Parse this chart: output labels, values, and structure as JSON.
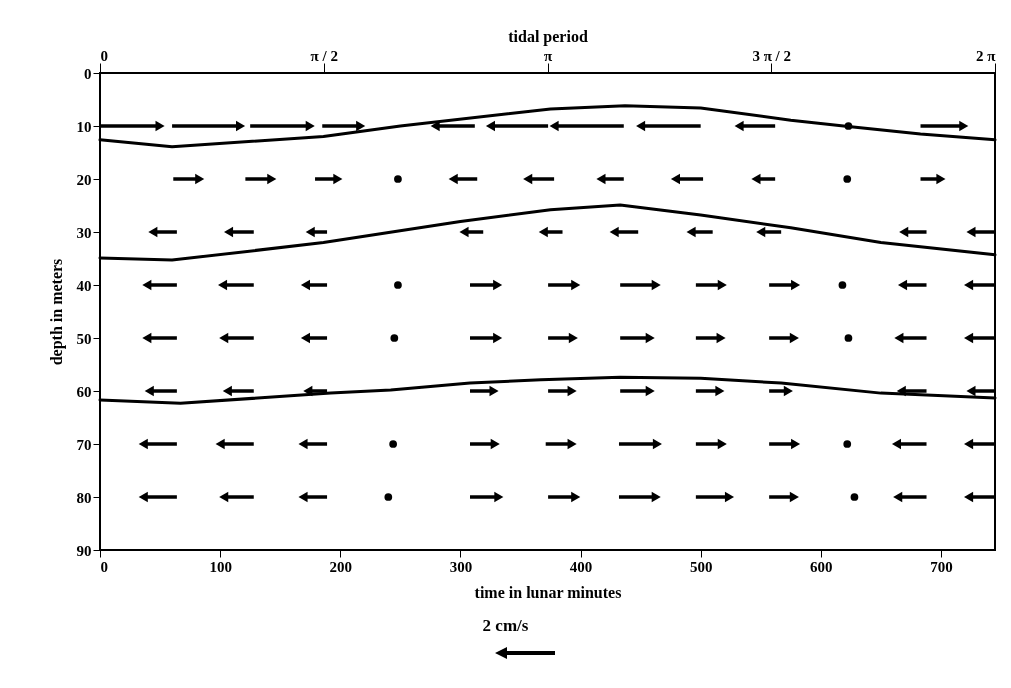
{
  "chart_data": {
    "type": "line",
    "xlabel": "time in lunar minutes",
    "ylabel": "depth in meters",
    "x2label": "tidal period",
    "xlim": [
      0,
      745
    ],
    "xticks": [
      0,
      100,
      200,
      300,
      400,
      500,
      600,
      700
    ],
    "ylim": [
      90,
      0
    ],
    "yticks": [
      0,
      10,
      20,
      30,
      40,
      50,
      60,
      70,
      80,
      90
    ],
    "x2lim": [
      0,
      6.283
    ],
    "x2ticks": [
      0,
      {
        "value": 1.571,
        "label": "π / 2"
      },
      {
        "value": 3.142,
        "label": "π"
      },
      {
        "value": 4.712,
        "label": "3 π / 2"
      },
      {
        "value": 6.283,
        "label": "2 π"
      }
    ],
    "grid": false,
    "annotations": [
      "2 cm/s"
    ],
    "series": [
      {
        "color": "#000000",
        "x": [
          0,
          60,
          186,
          250,
          375,
          437,
          500,
          575,
          619,
          683,
          745
        ],
        "values": [
          12.6,
          13.9,
          12,
          10,
          6.8,
          6.2,
          6.6,
          8.9,
          10,
          11.5,
          12.6
        ]
      },
      {
        "color": "#000000",
        "x": [
          0,
          60,
          186,
          300,
          375,
          433,
          500,
          575,
          650,
          745
        ],
        "values": [
          34.9,
          35.3,
          32,
          28,
          25.8,
          24.9,
          26.8,
          29.2,
          32,
          34.3
        ]
      },
      {
        "color": "#000000",
        "x": [
          0,
          67,
          192,
          242,
          308,
          367,
          433,
          500,
          567,
          650,
          745
        ],
        "values": [
          61.7,
          62.3,
          60.4,
          59.8,
          58.5,
          57.9,
          57.4,
          57.6,
          58.5,
          60.4,
          61.3
        ]
      },
      {
        "type": "scatter",
        "color": "#000000",
        "x": [
          50,
          117,
          175,
          217,
          279,
          325,
          378,
          450,
          532,
          623,
          719,
          83,
          143,
          198,
          248,
          294,
          356,
          417,
          479,
          546,
          622,
          700,
          44,
          107,
          175,
          303,
          369,
          428,
          492,
          550,
          669,
          725,
          39,
          102,
          171,
          248,
          331,
          396,
          463,
          518,
          579,
          618,
          668,
          723,
          39,
          103,
          171,
          245,
          331,
          394,
          458,
          517,
          578,
          623,
          665,
          723,
          41,
          106,
          173,
          328,
          393,
          458,
          516,
          573,
          667,
          725,
          36,
          100,
          169,
          244,
          329,
          393,
          464,
          518,
          579,
          622,
          663,
          723,
          36,
          103,
          169,
          240,
          332,
          396,
          463,
          524,
          578,
          628,
          664,
          723
        ],
        "values": [
          10,
          10,
          10,
          10,
          10,
          10,
          10,
          10,
          10,
          10,
          10,
          20,
          20,
          20,
          20,
          20,
          20,
          20,
          20,
          20,
          20,
          20,
          30,
          30,
          30,
          30,
          30,
          30,
          30,
          30,
          30,
          30,
          40,
          40,
          40,
          40,
          40,
          40,
          40,
          40,
          40,
          40,
          40,
          40,
          50,
          50,
          50,
          50,
          50,
          50,
          50,
          50,
          50,
          50,
          50,
          50,
          60,
          60,
          60,
          60,
          60,
          60,
          60,
          60,
          60,
          60,
          70,
          70,
          70,
          70,
          70,
          70,
          70,
          70,
          70,
          70,
          70,
          70,
          80,
          80,
          80,
          80,
          80,
          80,
          80,
          80,
          80,
          80,
          80,
          80
        ],
        "xerrors": [
          [
            0,
            50
          ],
          [
            60,
            117
          ],
          [
            125,
            175
          ],
          [
            185,
            217
          ],
          [
            279,
            312
          ],
          [
            325,
            373
          ],
          [
            378,
            436
          ],
          [
            450,
            500
          ],
          [
            532,
            562
          ],
          null,
          [
            683,
            719
          ],
          [
            61,
            83
          ],
          [
            121,
            143
          ],
          [
            179,
            198
          ],
          null,
          [
            294,
            314
          ],
          [
            356,
            378
          ],
          [
            417,
            436
          ],
          [
            479,
            502
          ],
          [
            546,
            562
          ],
          null,
          [
            683,
            700
          ],
          [
            44,
            64
          ],
          [
            107,
            128
          ],
          [
            175,
            189
          ],
          [
            303,
            319
          ],
          [
            369,
            385
          ],
          [
            428,
            448
          ],
          [
            492,
            510
          ],
          [
            550,
            567
          ],
          [
            669,
            688
          ],
          [
            725,
            745
          ],
          [
            39,
            64
          ],
          [
            102,
            128
          ],
          [
            171,
            189
          ],
          null,
          [
            308,
            331
          ],
          [
            373,
            396
          ],
          [
            433,
            463
          ],
          [
            496,
            518
          ],
          [
            557,
            579
          ],
          null,
          [
            668,
            688
          ],
          [
            723,
            745
          ],
          [
            39,
            64
          ],
          [
            103,
            128
          ],
          [
            171,
            189
          ],
          null,
          [
            308,
            331
          ],
          [
            373,
            394
          ],
          [
            433,
            458
          ],
          [
            496,
            517
          ],
          [
            557,
            578
          ],
          null,
          [
            665,
            688
          ],
          [
            723,
            745
          ],
          [
            41,
            64
          ],
          [
            106,
            128
          ],
          [
            173,
            189
          ],
          [
            308,
            328
          ],
          [
            373,
            393
          ],
          [
            433,
            458
          ],
          [
            496,
            516
          ],
          [
            557,
            573
          ],
          [
            667,
            688
          ],
          [
            725,
            745
          ],
          [
            36,
            64
          ],
          [
            100,
            128
          ],
          [
            169,
            189
          ],
          null,
          [
            308,
            329
          ],
          [
            371,
            393
          ],
          [
            432,
            464
          ],
          [
            496,
            518
          ],
          [
            557,
            579
          ],
          null,
          [
            663,
            688
          ],
          [
            723,
            745
          ],
          [
            36,
            64
          ],
          [
            103,
            128
          ],
          [
            169,
            189
          ],
          null,
          [
            308,
            332
          ],
          [
            373,
            396
          ],
          [
            432,
            463
          ],
          [
            496,
            524
          ],
          [
            557,
            578
          ],
          null,
          [
            664,
            688
          ],
          [
            723,
            745
          ]
        ]
      }
    ]
  }
}
